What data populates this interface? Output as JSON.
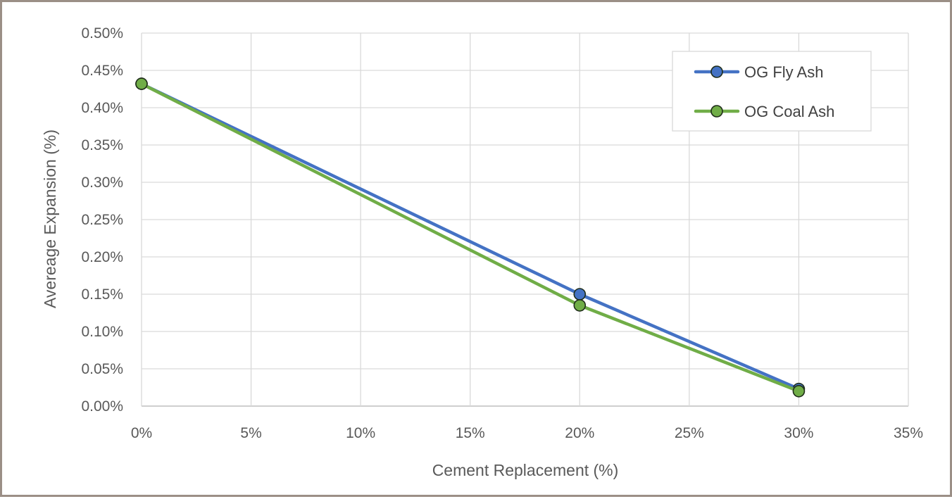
{
  "chart_data": {
    "type": "line",
    "title": "",
    "xlabel": "Cement Replacement (%)",
    "ylabel": "Avereage Expansion (%)",
    "xlim": [
      0,
      35
    ],
    "ylim": [
      0,
      0.5
    ],
    "x_ticks": [
      0,
      5,
      10,
      15,
      20,
      25,
      30,
      35
    ],
    "x_tick_labels": [
      "0%",
      "5%",
      "10%",
      "15%",
      "20%",
      "25%",
      "30%",
      "35%"
    ],
    "y_ticks": [
      0,
      0.05,
      0.1,
      0.15,
      0.2,
      0.25,
      0.3,
      0.35,
      0.4,
      0.45,
      0.5
    ],
    "y_tick_labels": [
      "0.00%",
      "0.05%",
      "0.10%",
      "0.15%",
      "0.20%",
      "0.25%",
      "0.30%",
      "0.35%",
      "0.40%",
      "0.45%",
      "0.50%"
    ],
    "grid": true,
    "legend_position": "top-right",
    "series": [
      {
        "name": "OG Fly Ash",
        "color": "#4472c4",
        "x": [
          0,
          20,
          30
        ],
        "y": [
          0.432,
          0.15,
          0.023
        ]
      },
      {
        "name": "OG Coal Ash",
        "color": "#70ad47",
        "x": [
          0,
          20,
          30
        ],
        "y": [
          0.432,
          0.135,
          0.02
        ]
      }
    ]
  }
}
